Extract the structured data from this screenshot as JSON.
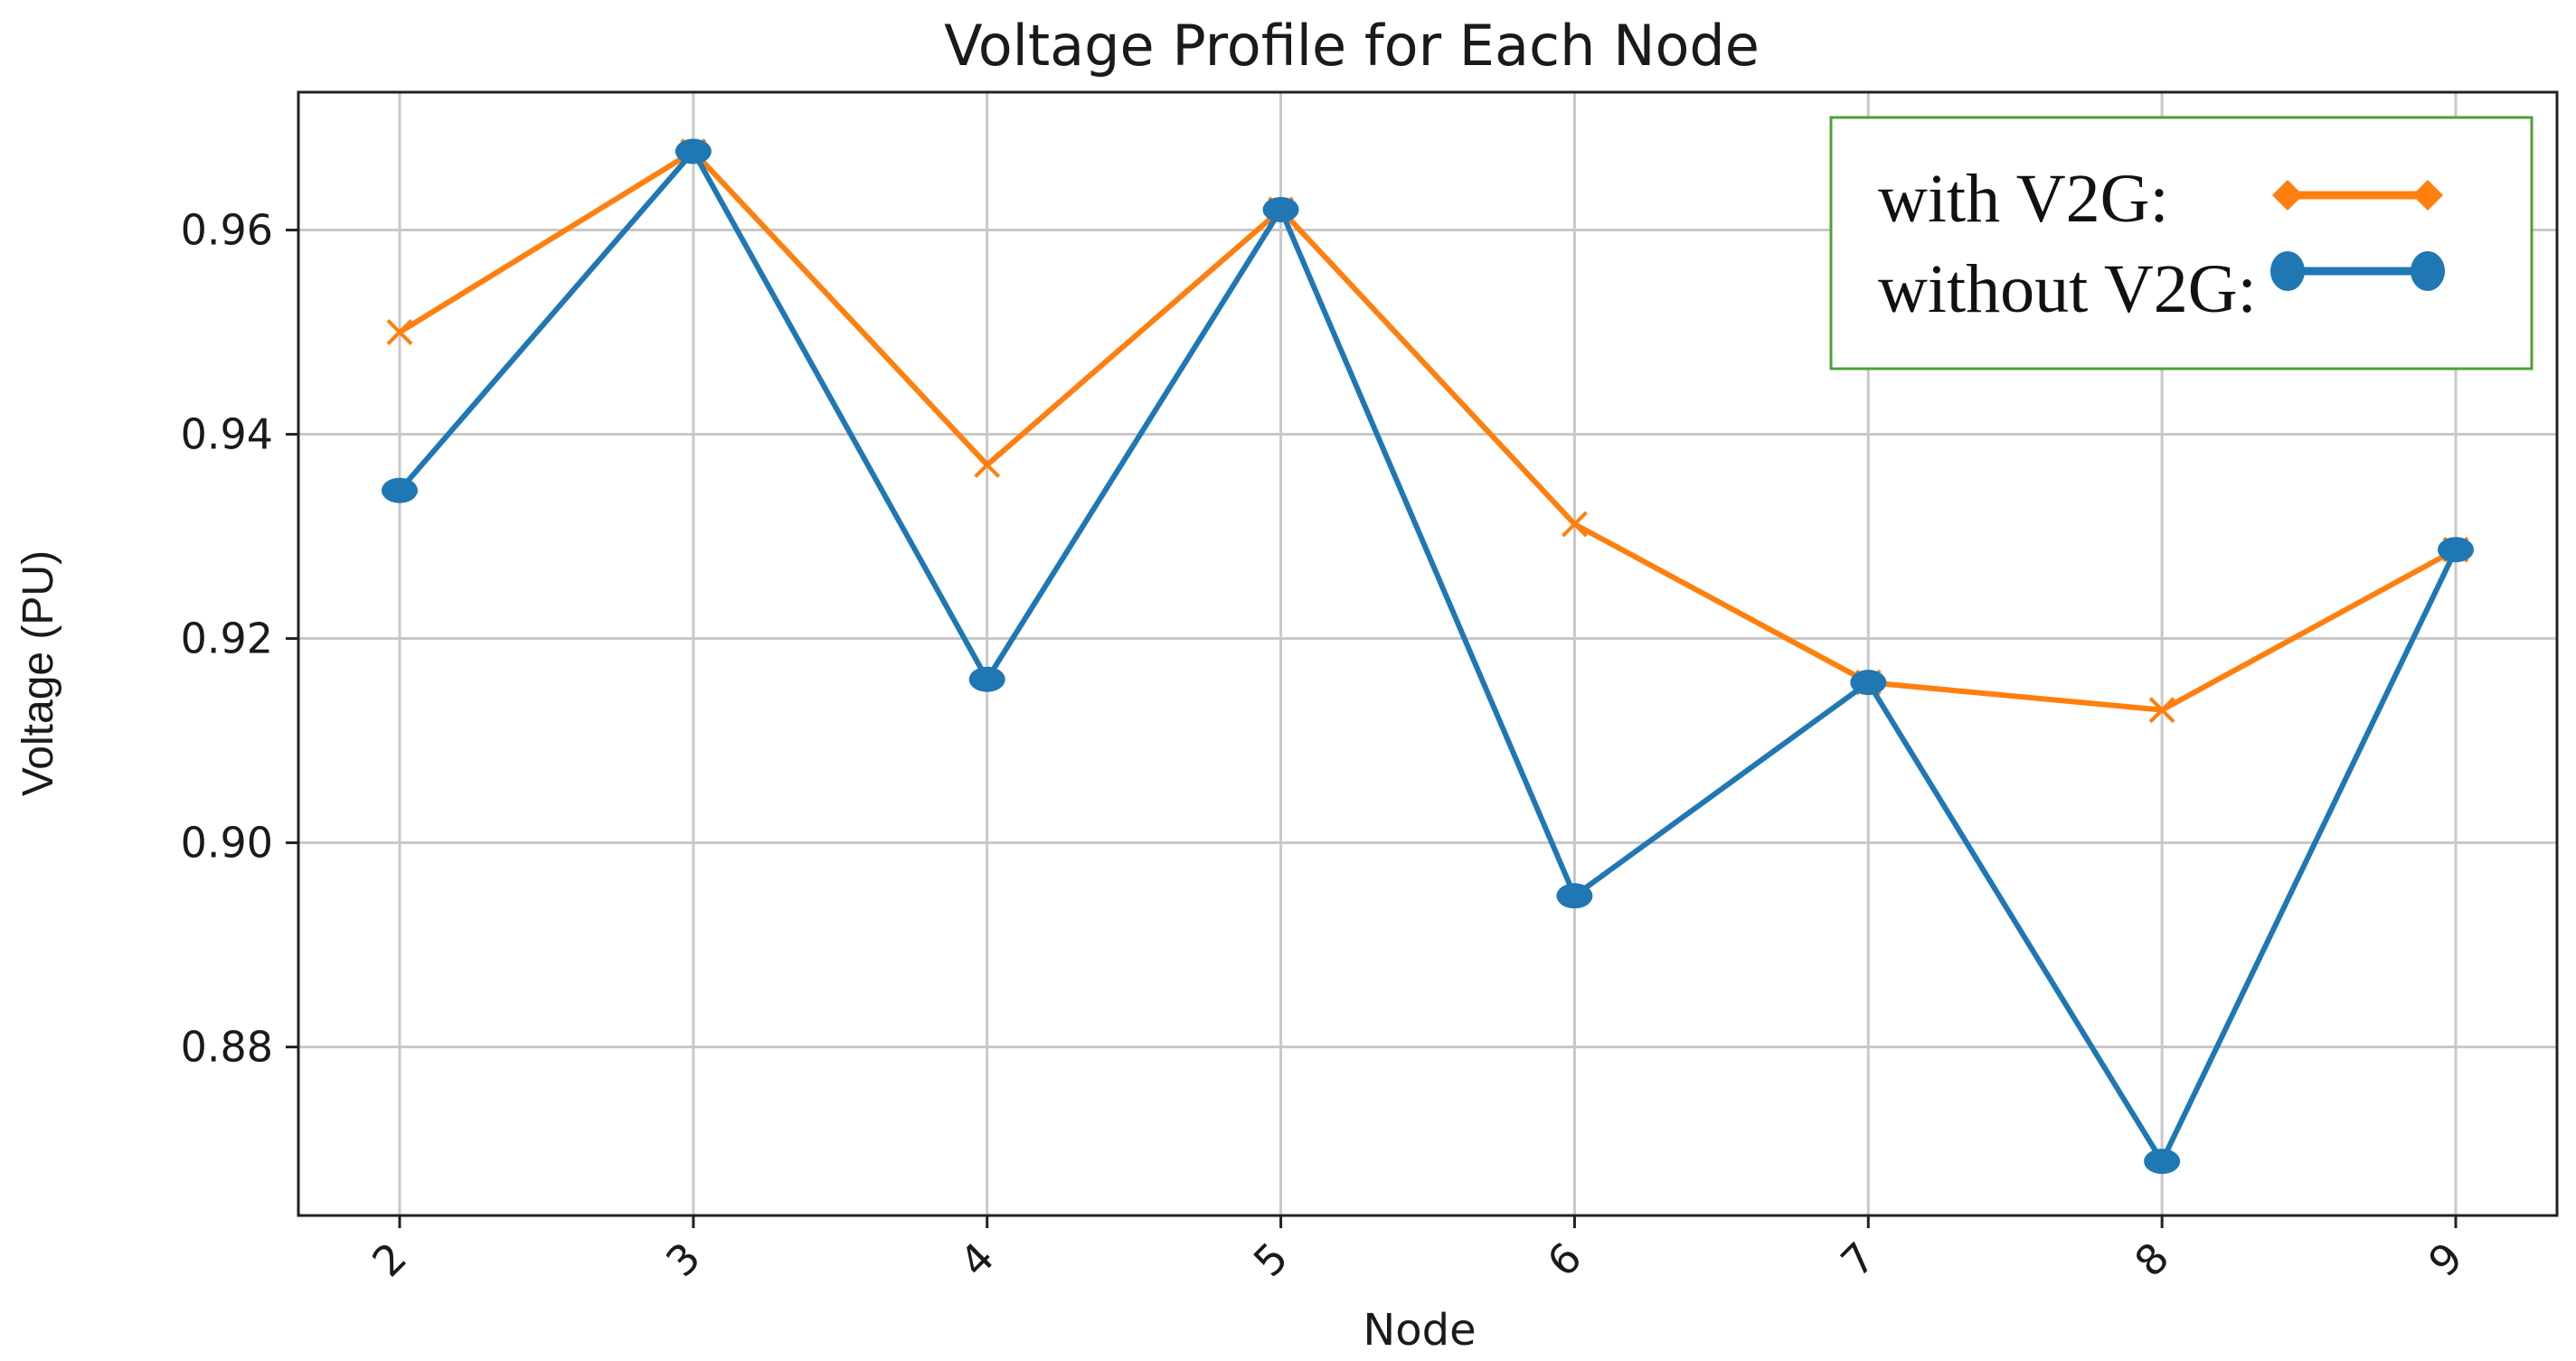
{
  "chart_data": {
    "type": "line",
    "title": "Voltage Profile for Each Node",
    "xlabel": "Node",
    "ylabel": "Voltage (PU)",
    "x": [
      2,
      3,
      4,
      5,
      6,
      7,
      8,
      9
    ],
    "x_tick_labels": [
      "2",
      "3",
      "4",
      "5",
      "6",
      "7",
      "8",
      "9"
    ],
    "ylim": [
      0.8635,
      0.9735
    ],
    "y_ticks": [
      0.88,
      0.9,
      0.92,
      0.94,
      0.96
    ],
    "y_tick_labels": [
      "0.88",
      "0.90",
      "0.92",
      "0.94",
      "0.96"
    ],
    "grid": true,
    "legend_position": "top-right",
    "series": [
      {
        "name": "with V2G:",
        "color": "#ff7f0e",
        "marker": "x",
        "legend_marker": "diamond",
        "values": [
          0.95,
          0.9677,
          0.937,
          0.962,
          0.9312,
          0.9157,
          0.913,
          0.9287
        ]
      },
      {
        "name": "without V2G:",
        "color": "#1f77b4",
        "marker": "circle",
        "values": [
          0.9345,
          0.9677,
          0.916,
          0.962,
          0.8948,
          0.9157,
          0.8688,
          0.9287
        ]
      }
    ],
    "colors": {
      "grid": "#c8c8c8",
      "axes": "#222222",
      "legend_border": "#4ea03a"
    }
  }
}
